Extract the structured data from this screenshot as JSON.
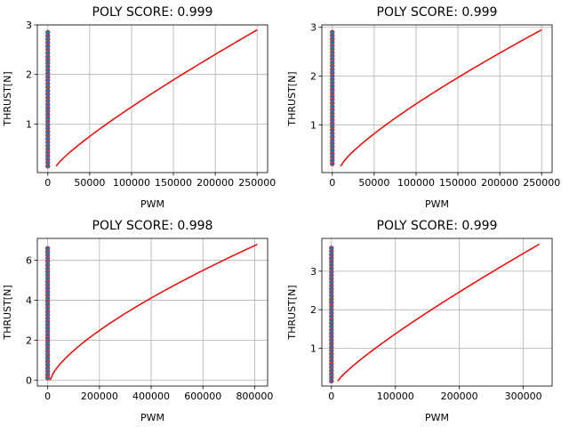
{
  "chart_data": [
    {
      "type": "line",
      "title": "POLY SCORE: 0.999",
      "xlabel": "PWM",
      "ylabel": "THRUST[N]",
      "xlim": [
        -12500,
        262500
      ],
      "ylim": [
        0.02,
        3.0
      ],
      "xticks": [
        0,
        50000,
        100000,
        150000,
        200000,
        250000
      ],
      "xtick_labels": [
        "0",
        "50000",
        "100000",
        "150000",
        "200000",
        "250000"
      ],
      "yticks": [
        1,
        2,
        3
      ],
      "ytick_labels": [
        "1",
        "2",
        "3"
      ],
      "grid": true,
      "scatter_series": {
        "color": "#1f77b4",
        "x": 0,
        "y_range": [
          0.15,
          2.85
        ]
      },
      "fit_series": {
        "color": "#ff0000",
        "x_range": [
          10000,
          250000
        ],
        "y_range": [
          0.15,
          2.9
        ],
        "power": 0.85
      }
    },
    {
      "type": "line",
      "title": "POLY SCORE: 0.999",
      "xlabel": "PWM",
      "ylabel": "THRUST[N]",
      "xlim": [
        -12500,
        262500
      ],
      "ylim": [
        0.02,
        3.05
      ],
      "xticks": [
        0,
        50000,
        100000,
        150000,
        200000,
        250000
      ],
      "xtick_labels": [
        "0",
        "50000",
        "100000",
        "150000",
        "200000",
        "250000"
      ],
      "yticks": [
        1,
        2,
        3
      ],
      "ytick_labels": [
        "1",
        "2",
        "3"
      ],
      "grid": true,
      "scatter_series": {
        "color": "#1f77b4",
        "x": 0,
        "y_range": [
          0.2,
          2.9
        ]
      },
      "fit_series": {
        "color": "#ff0000",
        "x_range": [
          10000,
          250000
        ],
        "y_range": [
          0.15,
          2.95
        ],
        "power": 0.8
      }
    },
    {
      "type": "line",
      "title": "POLY SCORE: 0.998",
      "xlabel": "PWM",
      "ylabel": "THRUST[N]",
      "xlim": [
        -40000,
        850000
      ],
      "ylim": [
        -0.3,
        7.1
      ],
      "xticks": [
        0,
        200000,
        400000,
        600000,
        800000
      ],
      "xtick_labels": [
        "0",
        "200000",
        "400000",
        "600000",
        "800000"
      ],
      "yticks": [
        0,
        2,
        4,
        6
      ],
      "ytick_labels": [
        "0",
        "2",
        "4",
        "6"
      ],
      "grid": true,
      "scatter_series": {
        "color": "#1f77b4",
        "x": 0,
        "y_range": [
          0.1,
          6.6
        ]
      },
      "fit_series": {
        "color": "#ff0000",
        "x_range": [
          10000,
          810000
        ],
        "y_range": [
          0.0,
          6.8
        ],
        "power": 0.7
      }
    },
    {
      "type": "line",
      "title": "POLY SCORE: 0.999",
      "xlabel": "PWM",
      "ylabel": "THRUST[N]",
      "xlim": [
        -15000,
        345000
      ],
      "ylim": [
        0.02,
        3.85
      ],
      "xticks": [
        0,
        100000,
        200000,
        300000
      ],
      "xtick_labels": [
        "0",
        "100000",
        "200000",
        "300000"
      ],
      "yticks": [
        1,
        2,
        3
      ],
      "ytick_labels": [
        "1",
        "2",
        "3"
      ],
      "grid": true,
      "scatter_series": {
        "color": "#1f77b4",
        "x": 0,
        "y_range": [
          0.15,
          3.6
        ]
      },
      "fit_series": {
        "color": "#ff0000",
        "x_range": [
          10000,
          325000
        ],
        "y_range": [
          0.15,
          3.7
        ],
        "power": 0.85
      }
    }
  ]
}
